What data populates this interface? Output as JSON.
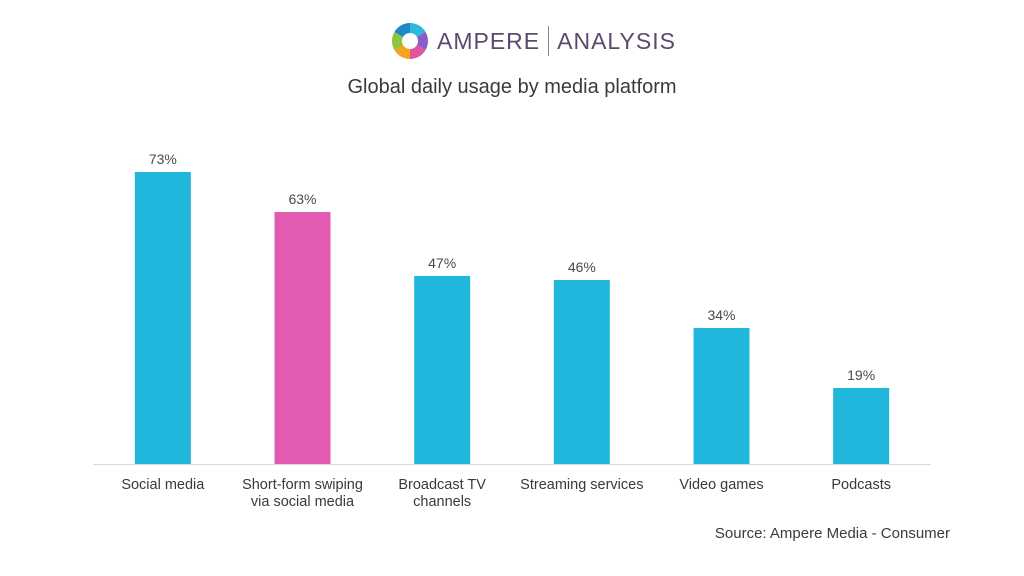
{
  "brand": {
    "primary": "AMPERE",
    "secondary": "ANALYSIS",
    "logo_colors": [
      "#2db8dd",
      "#8a5cc7",
      "#e0569f",
      "#f4a323",
      "#8cc63f",
      "#1e88c8"
    ]
  },
  "chart_data": {
    "type": "bar",
    "title": "Global daily usage by media platform",
    "xlabel": "",
    "ylabel": "",
    "ylim": [
      0,
      80
    ],
    "grid": false,
    "legend": "none",
    "value_suffix": "%",
    "categories": [
      [
        "Social media"
      ],
      [
        "Short-form swiping",
        "via social media"
      ],
      [
        "Broadcast TV",
        "channels"
      ],
      [
        "Streaming services"
      ],
      [
        "Video games"
      ],
      [
        "Podcasts"
      ]
    ],
    "values": [
      73,
      63,
      47,
      46,
      34,
      19
    ],
    "colors": [
      "#21b7dc",
      "#e15bb2",
      "#21b7dc",
      "#21b7dc",
      "#21b7dc",
      "#21b7dc"
    ],
    "source": "Source: Ampere Media - Consumer"
  }
}
